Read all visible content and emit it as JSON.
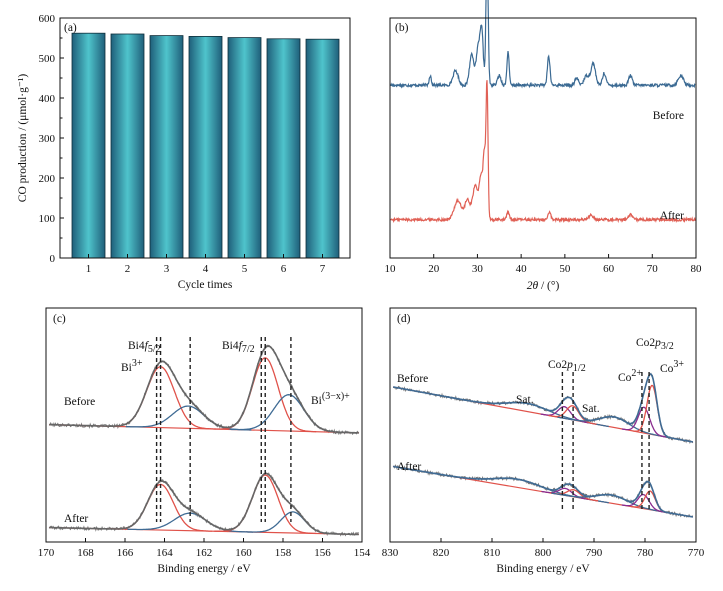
{
  "colors": {
    "bar_dark": "#1f5f7a",
    "bar_light": "#4fc4cc",
    "before_line": "#3b6a93",
    "after_line": "#e06055",
    "fit_red": "#e0524a",
    "fit_blue": "#3f6b94",
    "fit_gray": "#666666",
    "fit_purple": "#8a2c8f",
    "bi3_label": "#d94b3f",
    "bix_label": "#3f6b94",
    "co2_label": "#8a2c8f",
    "co3_label": "#d94b3f"
  },
  "chart_data": [
    {
      "id": "a",
      "panel_label": "(a)",
      "type": "bar",
      "xlabel": "Cycle times",
      "ylabel": "CO production / (μmol·g⁻¹)",
      "categories": [
        "1",
        "2",
        "3",
        "4",
        "5",
        "6",
        "7"
      ],
      "values": [
        562,
        560,
        556,
        554,
        551,
        548,
        547
      ],
      "ylim": [
        0,
        600
      ],
      "yticks": [
        0,
        100,
        200,
        300,
        400,
        500,
        600
      ]
    },
    {
      "id": "b",
      "panel_label": "(b)",
      "type": "line",
      "xlabel": "2θ / (°)",
      "xlim": [
        10,
        80
      ],
      "xticks": [
        10,
        20,
        30,
        40,
        50,
        60,
        70,
        80
      ],
      "series": [
        {
          "name": "Before",
          "baseline": 0.72,
          "peaks": [
            [
              19.2,
              0.04,
              0.25
            ],
            [
              25.0,
              0.06,
              0.6
            ],
            [
              28.7,
              0.13,
              0.5
            ],
            [
              30.2,
              0.16,
              0.45
            ],
            [
              31.0,
              0.21,
              0.35
            ],
            [
              32.2,
              0.55,
              0.25
            ],
            [
              35.0,
              0.04,
              0.4
            ],
            [
              37.0,
              0.14,
              0.25
            ],
            [
              46.3,
              0.12,
              0.3
            ],
            [
              52.7,
              0.03,
              0.4
            ],
            [
              55.0,
              0.04,
              0.6
            ],
            [
              56.5,
              0.09,
              0.5
            ],
            [
              59.0,
              0.05,
              0.4
            ],
            [
              65.0,
              0.04,
              0.4
            ],
            [
              76.5,
              0.04,
              0.6
            ]
          ]
        },
        {
          "name": "After",
          "baseline": 0.16,
          "peaks": [
            [
              25.5,
              0.08,
              0.8
            ],
            [
              27.7,
              0.08,
              0.6
            ],
            [
              29.5,
              0.14,
              0.6
            ],
            [
              30.8,
              0.17,
              0.4
            ],
            [
              31.6,
              0.26,
              0.3
            ],
            [
              32.2,
              0.55,
              0.22
            ],
            [
              37.0,
              0.03,
              0.3
            ],
            [
              46.5,
              0.03,
              0.3
            ],
            [
              56.0,
              0.02,
              0.5
            ],
            [
              65.0,
              0.02,
              0.4
            ]
          ]
        }
      ]
    },
    {
      "id": "c",
      "panel_label": "(c)",
      "type": "line",
      "xlabel": "Binding energy / eV",
      "xlim": [
        170,
        154
      ],
      "xticks": [
        170,
        168,
        166,
        164,
        162,
        160,
        158,
        156,
        154
      ],
      "series": [
        {
          "name": "Before",
          "baseline": [
            0.502,
            0.466
          ],
          "components": [
            {
              "kind": "bi3",
              "center": 164.2,
              "height": 0.26,
              "width": 0.7
            },
            {
              "kind": "bix",
              "center": 162.8,
              "height": 0.095,
              "width": 0.8
            },
            {
              "kind": "bi3",
              "center": 158.9,
              "height": 0.31,
              "width": 0.65
            },
            {
              "kind": "bix",
              "center": 157.7,
              "height": 0.155,
              "width": 0.75
            }
          ]
        },
        {
          "name": "After",
          "baseline": [
            0.062,
            0.032
          ],
          "components": [
            {
              "kind": "bi3",
              "center": 164.2,
              "height": 0.195,
              "width": 0.65
            },
            {
              "kind": "bix",
              "center": 162.7,
              "height": 0.075,
              "width": 0.8
            },
            {
              "kind": "bi3",
              "center": 158.9,
              "height": 0.245,
              "width": 0.65
            },
            {
              "kind": "bix",
              "center": 157.5,
              "height": 0.09,
              "width": 0.6
            }
          ]
        }
      ],
      "guide_lines": [
        164.4,
        164.2,
        162.7,
        159.1,
        158.9,
        157.6
      ],
      "annotations": {
        "bi4f52_main": "Bi4",
        "bi4f52_italic": "f",
        "bi4f52_sub": "5/2",
        "bi4f72_main": "Bi4",
        "bi4f72_italic": "f",
        "bi4f72_sub": "7/2",
        "bi3_main": "Bi",
        "bi3_sup": "3+",
        "bix_main": "Bi",
        "bix_sup": "(3−x)+",
        "before": "Before",
        "after": "After"
      }
    },
    {
      "id": "d",
      "panel_label": "(d)",
      "type": "line",
      "xlabel": "Binding energy / eV",
      "xlim": [
        830,
        770
      ],
      "xticks": [
        830,
        820,
        810,
        800,
        790,
        780,
        770
      ],
      "series": [
        {
          "name": "Before",
          "baseline": [
            0.665,
            0.425
          ],
          "components": [
            {
              "kind": "sat",
              "center": 803.0,
              "height": 0.035,
              "width": 4.0
            },
            {
              "kind": "co2",
              "center": 795.8,
              "height": 0.05,
              "width": 1.2
            },
            {
              "kind": "co3",
              "center": 794.2,
              "height": 0.06,
              "width": 1.2
            },
            {
              "kind": "sat",
              "center": 786.0,
              "height": 0.045,
              "width": 2.8
            },
            {
              "kind": "co2",
              "center": 780.2,
              "height": 0.11,
              "width": 1.1
            },
            {
              "kind": "co3",
              "center": 778.6,
              "height": 0.21,
              "width": 1.0
            }
          ]
        },
        {
          "name": "After",
          "baseline": [
            0.325,
            0.105
          ],
          "components": [
            {
              "kind": "sat",
              "center": 805.0,
              "height": 0.035,
              "width": 4.5
            },
            {
              "kind": "co2",
              "center": 795.6,
              "height": 0.03,
              "width": 1.2
            },
            {
              "kind": "co3",
              "center": 794.0,
              "height": 0.03,
              "width": 1.2
            },
            {
              "kind": "sat",
              "center": 786.5,
              "height": 0.035,
              "width": 3.0
            },
            {
              "kind": "co2",
              "center": 780.3,
              "height": 0.06,
              "width": 1.1
            },
            {
              "kind": "co3",
              "center": 779.0,
              "height": 0.08,
              "width": 1.0
            }
          ]
        }
      ],
      "guide_lines": [
        796.2,
        794.1,
        780.6,
        779.2
      ],
      "annotations": {
        "co2p12_main": "Co2",
        "co2p12_italic": "p",
        "co2p12_sub": "1/2",
        "co2p32_main": "Co2",
        "co2p32_italic": "p",
        "co2p32_sub": "3/2",
        "co2_main": "Co",
        "co2_sup": "2+",
        "co3_main": "Co",
        "co3_sup": "3+",
        "sat_left": "Sat.",
        "sat_right": "Sat.",
        "before": "Before",
        "after": "After"
      }
    }
  ]
}
